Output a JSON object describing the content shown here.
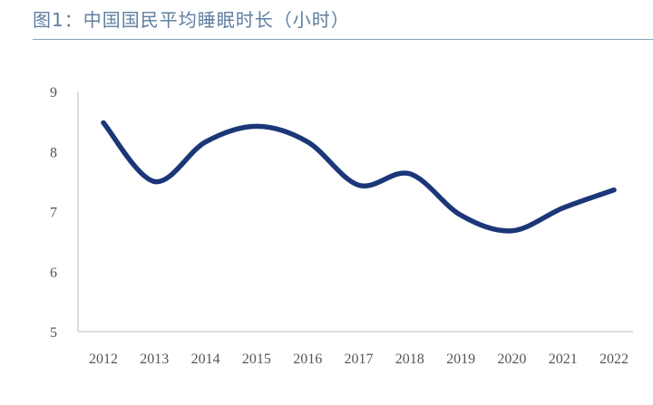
{
  "title": "图1：中国国民平均睡眠时长（小时）",
  "colors": {
    "line": "#1b3778",
    "axis": "#c8c8c8",
    "title": "#5f7ea0",
    "rule": "#8ea3b8"
  },
  "chart_data": {
    "type": "line",
    "title": "图1：中国国民平均睡眠时长（小时）",
    "xlabel": "",
    "ylabel": "",
    "categories": [
      "2012",
      "2013",
      "2014",
      "2015",
      "2016",
      "2017",
      "2018",
      "2019",
      "2020",
      "2021",
      "2022"
    ],
    "series": [
      {
        "values": [
          8.48,
          7.5,
          8.16,
          8.42,
          8.16,
          7.44,
          7.63,
          6.94,
          6.68,
          7.06,
          7.36
        ]
      }
    ],
    "ylim": [
      5,
      9
    ],
    "yticks": [
      5,
      6,
      7,
      8,
      9
    ],
    "grid": false,
    "smooth": true,
    "legend": "none"
  }
}
